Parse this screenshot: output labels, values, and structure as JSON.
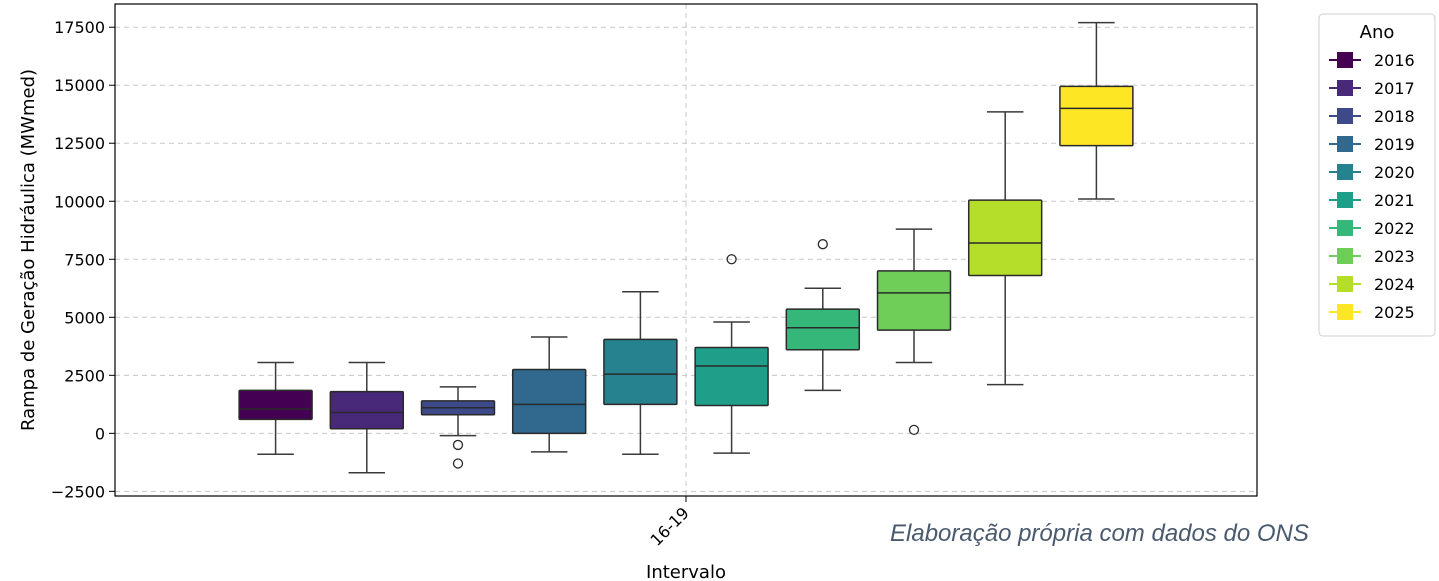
{
  "chart_data": {
    "type": "box",
    "title": "",
    "xlabel": "Intervalo",
    "ylabel": "Rampa de Geração Hidráulica (MWmed)",
    "categories": [
      "16-19"
    ],
    "ylim": [
      -2700,
      18500
    ],
    "yticks": [
      -2500,
      0,
      2500,
      5000,
      7500,
      10000,
      12500,
      15000,
      17500
    ],
    "ytick_labels": [
      "−2500",
      "0",
      "2500",
      "5000",
      "7500",
      "10000",
      "12500",
      "15000",
      "17500"
    ],
    "grid": true,
    "legend": {
      "title": "Ano",
      "placement": "outside-right-top"
    },
    "series": [
      {
        "name": "2016",
        "color": "#440154",
        "whisker_low": -900,
        "q1": 600,
        "median": 1050,
        "q3": 1850,
        "whisker_high": 3050,
        "outliers": []
      },
      {
        "name": "2017",
        "color": "#482878",
        "whisker_low": -1700,
        "q1": 200,
        "median": 900,
        "q3": 1800,
        "whisker_high": 3050,
        "outliers": []
      },
      {
        "name": "2018",
        "color": "#3e4989",
        "whisker_low": -100,
        "q1": 800,
        "median": 1100,
        "q3": 1400,
        "whisker_high": 2000,
        "outliers": [
          -500,
          -1300
        ]
      },
      {
        "name": "2019",
        "color": "#31688e",
        "whisker_low": -800,
        "q1": 0,
        "median": 1250,
        "q3": 2750,
        "whisker_high": 4150,
        "outliers": []
      },
      {
        "name": "2020",
        "color": "#26828e",
        "whisker_low": -900,
        "q1": 1250,
        "median": 2550,
        "q3": 4050,
        "whisker_high": 6100,
        "outliers": []
      },
      {
        "name": "2021",
        "color": "#1f9e89",
        "whisker_low": -850,
        "q1": 1200,
        "median": 2900,
        "q3": 3700,
        "whisker_high": 4800,
        "outliers": [
          7500
        ]
      },
      {
        "name": "2022",
        "color": "#35b779",
        "whisker_low": 1850,
        "q1": 3600,
        "median": 4550,
        "q3": 5350,
        "whisker_high": 6250,
        "outliers": [
          8150
        ]
      },
      {
        "name": "2023",
        "color": "#6ece58",
        "whisker_low": 3050,
        "q1": 4450,
        "median": 6050,
        "q3": 7000,
        "whisker_high": 8800,
        "outliers": [
          150
        ]
      },
      {
        "name": "2024",
        "color": "#b5de2b",
        "whisker_low": 2100,
        "q1": 6800,
        "median": 8200,
        "q3": 10050,
        "whisker_high": 13850,
        "outliers": []
      },
      {
        "name": "2025",
        "color": "#fde725",
        "whisker_low": 10100,
        "q1": 12400,
        "median": 14000,
        "q3": 14950,
        "whisker_high": 17700,
        "outliers": []
      }
    ]
  },
  "caption": "Elaboração própria com dados do ONS"
}
